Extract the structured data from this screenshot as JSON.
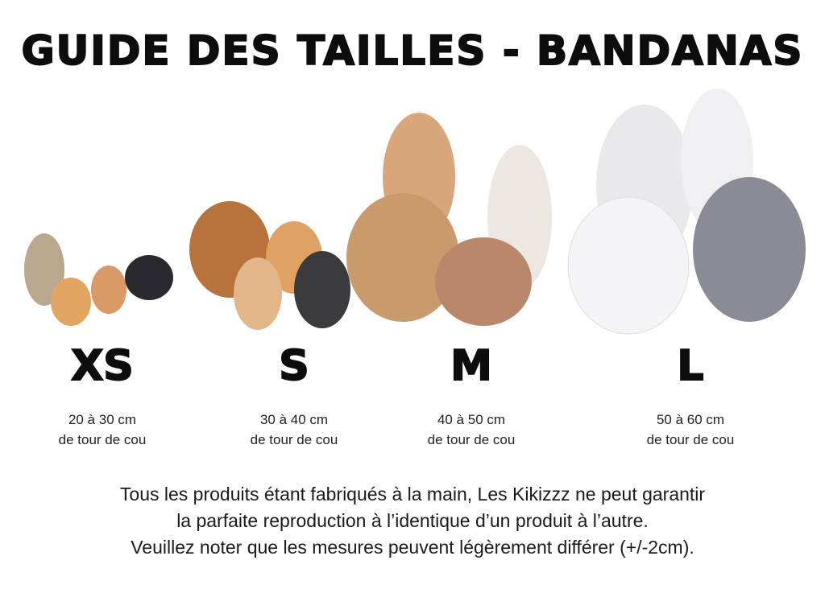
{
  "title": "GUIDE DES TAILLES - BANDANAS",
  "sizes": [
    {
      "label": "XS",
      "range": "20 à 30 cm",
      "unit_text": "de tour de cou"
    },
    {
      "label": "S",
      "range": "30 à 40 cm",
      "unit_text": "de tour de cou"
    },
    {
      "label": "M",
      "range": "40 à 50 cm",
      "unit_text": "de tour de cou"
    },
    {
      "label": "L",
      "range": "50 à 60 cm",
      "unit_text": "de tour de cou"
    }
  ],
  "note": [
    "Tous les produits étant fabriqués à la main, Les Kikizzz ne peut garantir",
    "la parfaite reproduction à l’identique d’un produit à l’autre.",
    "Veuillez noter que les mesures peuvent légèrement différer (+/-2cm)."
  ]
}
